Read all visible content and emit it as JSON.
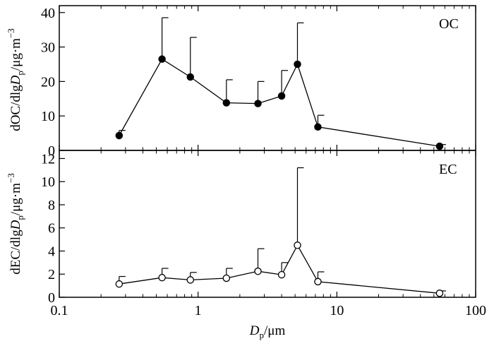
{
  "chart_data": [
    {
      "type": "line",
      "panel_label": "OC",
      "ylabel": "dOC/dlgDp/μg·m⁻³",
      "ylabel_parts": {
        "prefix": "dOC/dlg",
        "var": "D",
        "sub": "p",
        "suffix": "/μg·m",
        "sup": "−3"
      },
      "xlabel": "Dp/μm",
      "x_scale": "log",
      "xlim": [
        0.1,
        100
      ],
      "ylim": [
        0,
        42
      ],
      "yticks": [
        0,
        10,
        20,
        30,
        40
      ],
      "marker": "filled-circle",
      "x": [
        0.27,
        0.55,
        0.88,
        1.6,
        2.7,
        4.0,
        5.2,
        7.3,
        55
      ],
      "values": [
        4.3,
        26.5,
        21.3,
        13.8,
        13.6,
        15.8,
        25.0,
        6.8,
        1.2
      ],
      "error_upper": [
        5.8,
        38.5,
        32.8,
        20.5,
        20.0,
        23.2,
        37.0,
        10.2,
        1.7
      ]
    },
    {
      "type": "line",
      "panel_label": "EC",
      "ylabel": "dEC/dlgDp/μg·m⁻³",
      "ylabel_parts": {
        "prefix": "dEC/dlg",
        "var": "D",
        "sub": "p",
        "suffix": "/μg·m",
        "sup": "−3"
      },
      "xlabel": "Dp/μm",
      "x_scale": "log",
      "xlim": [
        0.1,
        100
      ],
      "ylim": [
        0,
        12.7
      ],
      "yticks": [
        0,
        2,
        4,
        6,
        8,
        10,
        12
      ],
      "marker": "open-circle",
      "x": [
        0.27,
        0.55,
        0.88,
        1.6,
        2.7,
        4.0,
        5.2,
        7.3,
        55
      ],
      "values": [
        1.15,
        1.7,
        1.5,
        1.65,
        2.25,
        1.95,
        4.5,
        1.35,
        0.35
      ],
      "error_upper": [
        1.8,
        2.5,
        2.15,
        2.5,
        4.2,
        3.0,
        11.2,
        2.2,
        0.55
      ]
    }
  ],
  "x_axis": {
    "tick_labels": [
      "0.1",
      "1",
      "10",
      "100"
    ],
    "tick_values": [
      0.1,
      1,
      10,
      100
    ],
    "title_var": "D",
    "title_sub": "p",
    "title_unit": "/μm"
  }
}
